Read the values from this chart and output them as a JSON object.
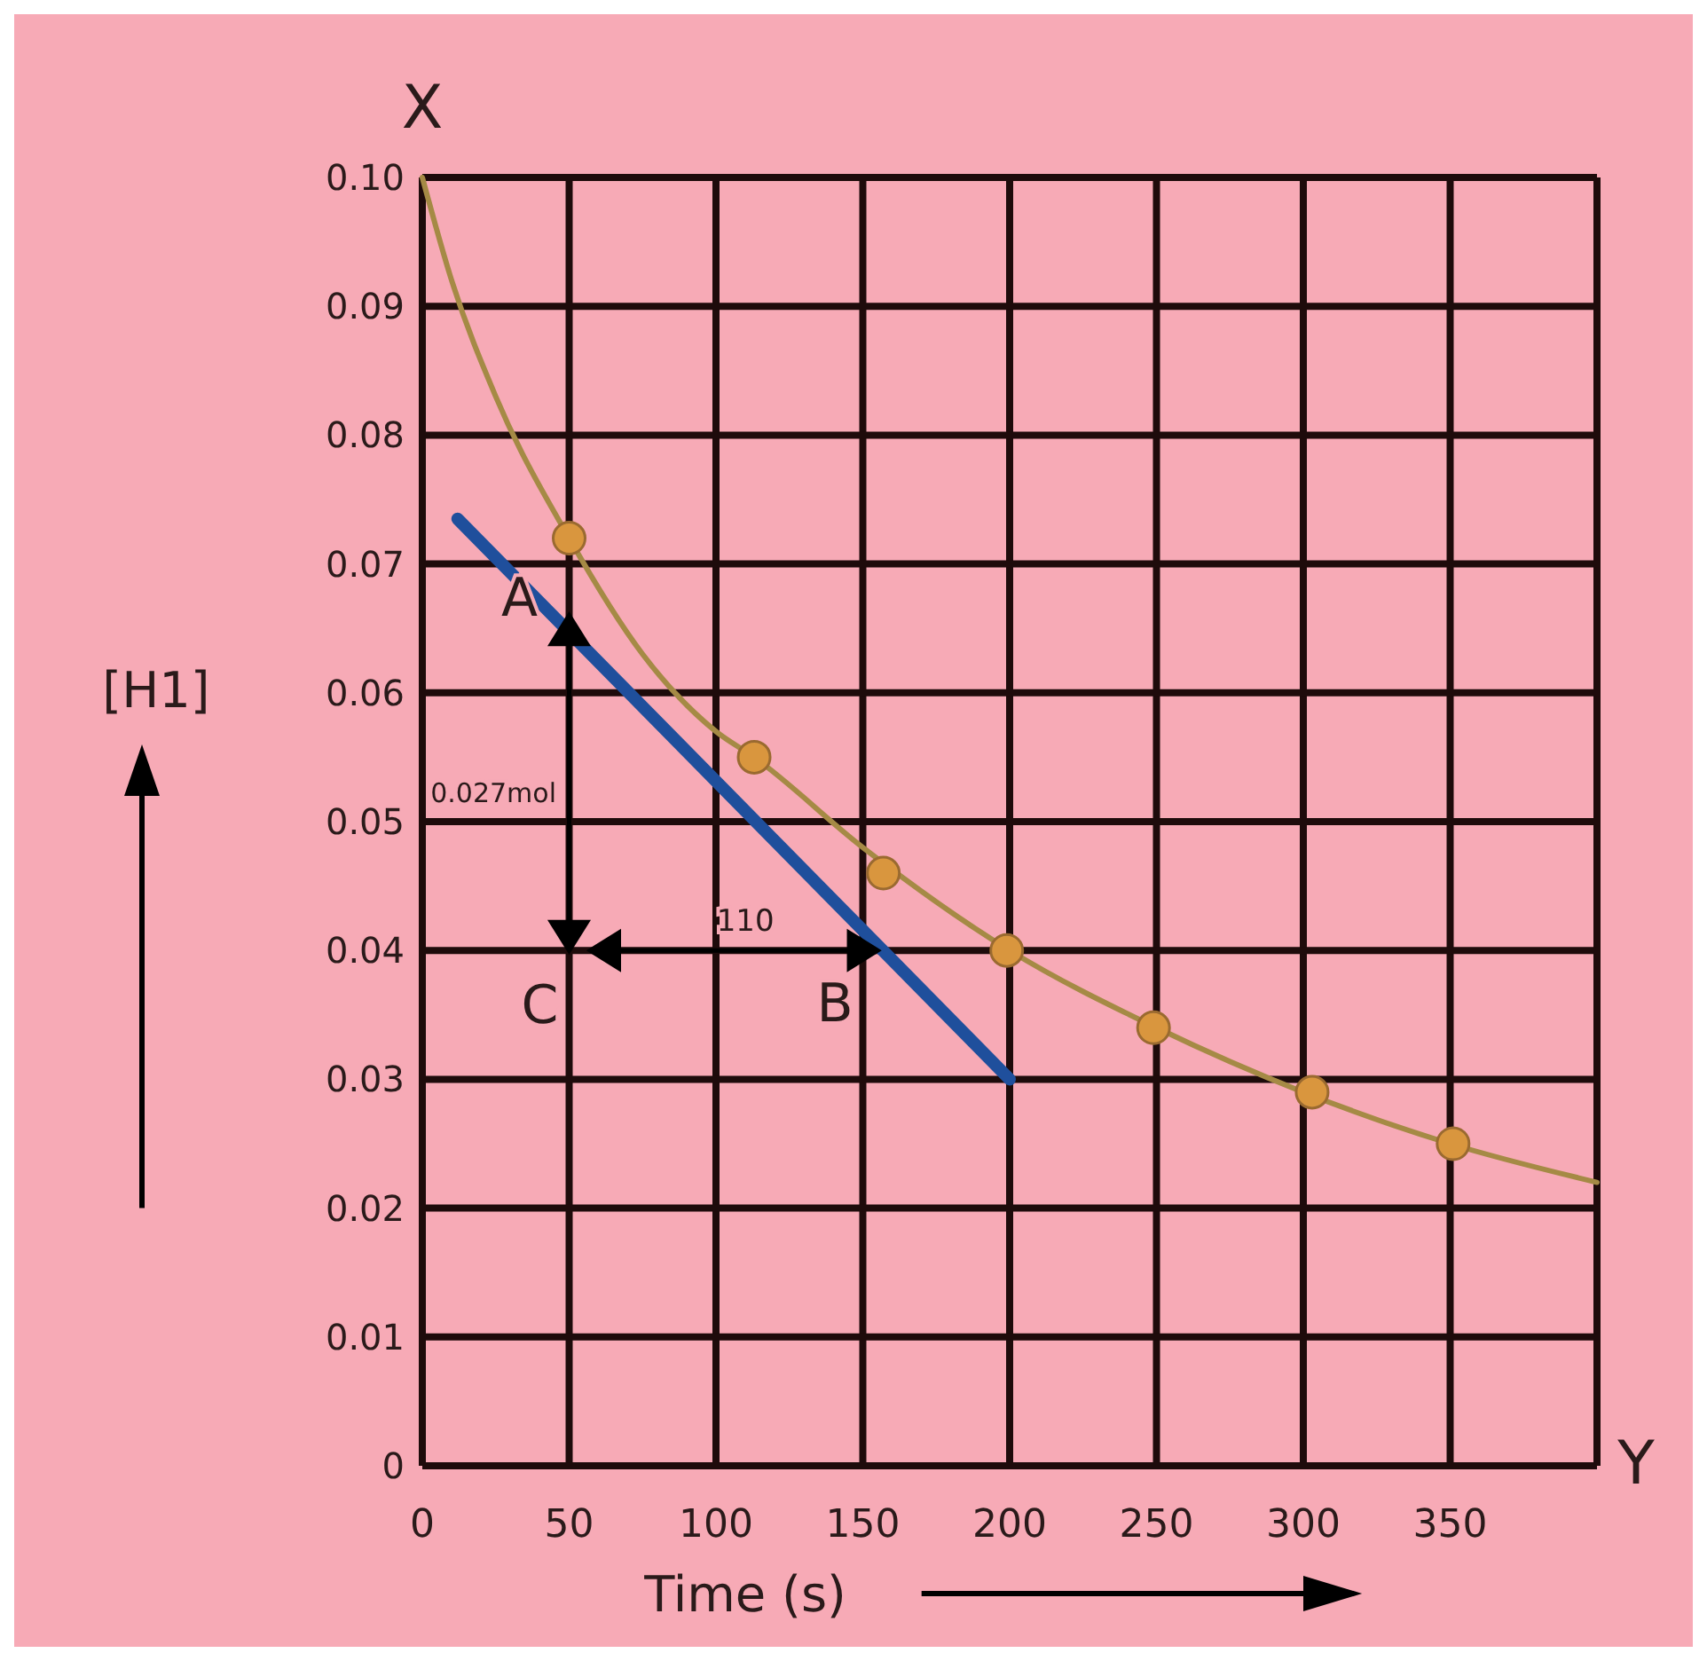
{
  "chart_data": {
    "type": "line",
    "xlabel": "Time (s)",
    "ylabel": "[H1]",
    "xlim": [
      0,
      400
    ],
    "xticks": [
      0,
      50,
      100,
      150,
      200,
      250,
      300,
      350
    ],
    "ylim": [
      0,
      0.1
    ],
    "yticks": [
      0,
      0.01,
      0.02,
      0.03,
      0.04,
      0.05,
      0.06,
      0.07,
      0.08,
      0.09,
      {
        "value": 0.1,
        "label": "0.10"
      }
    ],
    "grid": true,
    "series": [
      {
        "type": "line",
        "marker": "none",
        "color": "#a58a45",
        "x": [
          0,
          10,
          25,
          50,
          75,
          100,
          113,
          150,
          200,
          250,
          300,
          350,
          400
        ],
        "values": [
          0.1,
          0.092,
          0.083,
          0.072,
          0.063,
          0.057,
          0.055,
          0.048,
          0.04,
          0.034,
          0.029,
          0.025,
          0.022
        ]
      },
      {
        "type": "scatter",
        "marker": "circle",
        "color": "#d9963e",
        "x": [
          50,
          113,
          157,
          199,
          249,
          303,
          351
        ],
        "values": [
          0.072,
          0.055,
          0.046,
          0.04,
          0.034,
          0.029,
          0.025
        ]
      },
      {
        "type": "line",
        "marker": "none",
        "color": "#1f4f9c",
        "x": [
          12,
          200
        ],
        "values": [
          0.0735,
          0.03
        ]
      }
    ],
    "annotations": [
      {
        "text": "A",
        "x": 50,
        "y": 0.066
      },
      {
        "text": "B",
        "x": 155,
        "y": 0.04
      },
      "C",
      "0.027mol",
      "110",
      "X",
      "Y"
    ]
  }
}
